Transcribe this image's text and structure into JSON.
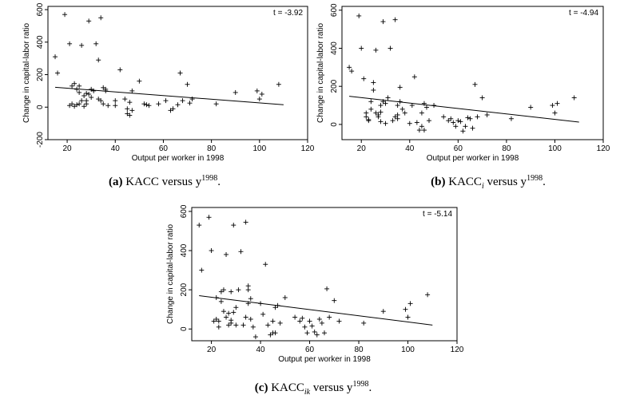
{
  "captions": [
    {
      "label": "(a)",
      "pre": "KACC versus y",
      "sub": "",
      "sup": "1998",
      "post": "."
    },
    {
      "label": "(b)",
      "pre": "KACC",
      "sub": "i",
      "mid": " versus y",
      "sup": "1998",
      "post": "."
    },
    {
      "label": "(c)",
      "pre": "KACC",
      "sub": "ik",
      "mid": " versus y",
      "sup": "1998",
      "post": "."
    }
  ],
  "chart_data": [
    {
      "type": "scatter",
      "title": "",
      "annotation": "t = -3.92",
      "xlabel": "Output per worker in 1998",
      "ylabel": "Change in capital-labor ratio",
      "xlim": [
        12,
        120
      ],
      "ylim": [
        -200,
        620
      ],
      "xticks": [
        20,
        40,
        60,
        80,
        100,
        120
      ],
      "yticks": [
        -200,
        0,
        200,
        400,
        600
      ],
      "fit": {
        "x": [
          15,
          110
        ],
        "y": [
          122,
          15
        ]
      },
      "x": [
        15,
        16,
        19,
        21,
        21,
        22,
        22,
        23,
        23,
        24,
        24,
        25,
        25,
        25,
        26,
        26,
        27,
        27,
        28,
        28,
        28,
        29,
        29,
        30,
        30,
        31,
        32,
        33,
        33,
        34,
        34,
        35,
        35,
        36,
        36,
        37,
        40,
        40,
        42,
        44,
        45,
        45,
        46,
        46,
        47,
        47,
        50,
        52,
        53,
        54,
        58,
        61,
        63,
        64,
        66,
        67,
        68,
        70,
        71,
        72,
        82,
        90,
        99,
        100,
        101,
        108
      ],
      "y": [
        310,
        210,
        570,
        390,
        10,
        20,
        130,
        5,
        145,
        110,
        15,
        20,
        90,
        130,
        380,
        40,
        5,
        70,
        20,
        40,
        85,
        530,
        80,
        60,
        110,
        100,
        390,
        50,
        290,
        550,
        40,
        20,
        120,
        100,
        110,
        10,
        10,
        40,
        230,
        50,
        -40,
        -10,
        -50,
        30,
        100,
        -20,
        160,
        20,
        15,
        10,
        20,
        40,
        -20,
        -10,
        15,
        210,
        40,
        140,
        25,
        50,
        20,
        90,
        100,
        50,
        80,
        140
      ]
    },
    {
      "type": "scatter",
      "title": "",
      "annotation": "t = -4.94",
      "xlabel": "Output per worker in 1998",
      "ylabel": "Change in capital-labor ratio",
      "xlim": [
        12,
        120
      ],
      "ylim": [
        -80,
        620
      ],
      "xticks": [
        20,
        40,
        60,
        80,
        100,
        120
      ],
      "yticks": [
        0,
        200,
        400,
        600
      ],
      "fit": {
        "x": [
          15,
          110
        ],
        "y": [
          148,
          12
        ]
      },
      "x": [
        15,
        16,
        19,
        20,
        21,
        22,
        22,
        23,
        23,
        24,
        24,
        25,
        25,
        26,
        26,
        27,
        27,
        28,
        28,
        28,
        29,
        29,
        30,
        30,
        31,
        32,
        33,
        34,
        34,
        35,
        35,
        35,
        36,
        36,
        37,
        38,
        40,
        41,
        42,
        43,
        44,
        45,
        45,
        46,
        46,
        47,
        48,
        50,
        54,
        56,
        57,
        58,
        59,
        60,
        61,
        62,
        63,
        64,
        65,
        66,
        67,
        68,
        70,
        72,
        82,
        90,
        99,
        100,
        101,
        108
      ],
      "y": [
        300,
        280,
        570,
        400,
        240,
        60,
        40,
        25,
        20,
        120,
        80,
        220,
        180,
        390,
        60,
        40,
        50,
        65,
        15,
        100,
        540,
        120,
        110,
        5,
        140,
        400,
        20,
        550,
        40,
        50,
        100,
        30,
        195,
        120,
        80,
        60,
        5,
        100,
        250,
        10,
        -30,
        -10,
        60,
        110,
        -30,
        90,
        20,
        100,
        40,
        20,
        30,
        10,
        -10,
        20,
        15,
        -35,
        -10,
        35,
        30,
        -20,
        210,
        40,
        140,
        50,
        30,
        90,
        100,
        60,
        110,
        140
      ]
    },
    {
      "type": "scatter",
      "title": "",
      "annotation": "t = -5.14",
      "xlabel": "Output per worker in 1998",
      "ylabel": "Change in capital-labor ratio",
      "xlim": [
        12,
        120
      ],
      "ylim": [
        -60,
        620
      ],
      "xticks": [
        20,
        40,
        60,
        80,
        100,
        120
      ],
      "yticks": [
        0,
        200,
        400,
        600
      ],
      "fit": {
        "x": [
          15,
          110
        ],
        "y": [
          170,
          20
        ]
      },
      "x": [
        15,
        16,
        19,
        20,
        21,
        22,
        22,
        23,
        23,
        24,
        24,
        25,
        25,
        26,
        26,
        27,
        27,
        28,
        28,
        28,
        29,
        29,
        30,
        30,
        31,
        32,
        33,
        34,
        34,
        35,
        35,
        35,
        36,
        36,
        37,
        38,
        40,
        41,
        42,
        43,
        44,
        45,
        45,
        46,
        46,
        47,
        48,
        50,
        54,
        56,
        57,
        58,
        59,
        60,
        61,
        62,
        63,
        64,
        65,
        66,
        67,
        68,
        70,
        72,
        82,
        90,
        99,
        100,
        101,
        108
      ],
      "y": [
        530,
        300,
        570,
        400,
        40,
        50,
        160,
        40,
        10,
        190,
        140,
        200,
        90,
        380,
        60,
        20,
        80,
        30,
        45,
        190,
        530,
        85,
        110,
        20,
        200,
        395,
        20,
        545,
        60,
        200,
        220,
        130,
        155,
        50,
        10,
        -40,
        130,
        75,
        330,
        20,
        -30,
        -20,
        40,
        110,
        -20,
        120,
        30,
        160,
        60,
        40,
        55,
        10,
        -20,
        40,
        15,
        -15,
        -30,
        50,
        30,
        -20,
        205,
        60,
        145,
        40,
        30,
        90,
        100,
        60,
        130,
        175
      ]
    }
  ]
}
